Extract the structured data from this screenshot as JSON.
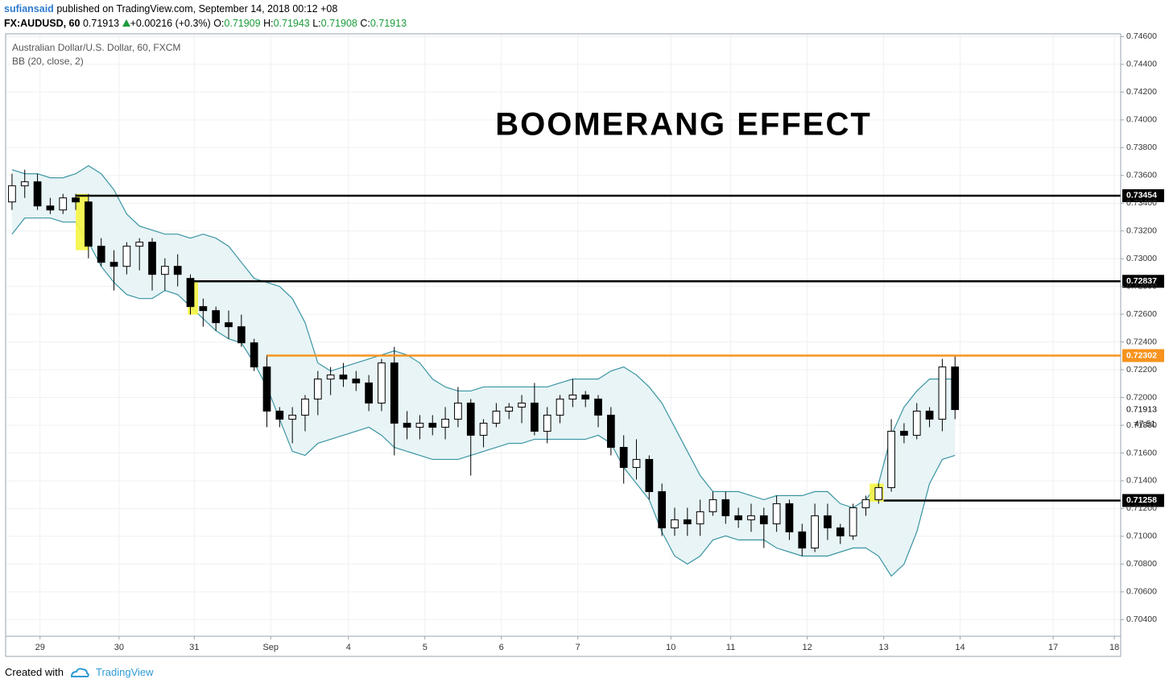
{
  "header": {
    "author": "sufiansaid",
    "published": "published on TradingView.com, September 14, 2018 00:12 +08"
  },
  "quote": {
    "symbol": "FX:AUDUSD, 60",
    "last": 0.71913,
    "change": "+0.00216 (+0.3%)",
    "ohlc": [
      {
        "label": "O:",
        "value": 0.71909
      },
      {
        "label": "H:",
        "value": 0.71943
      },
      {
        "label": "L:",
        "value": 0.71908
      },
      {
        "label": "C:",
        "value": 0.71913
      }
    ]
  },
  "footer": {
    "created": "Created with",
    "brand": "TradingView"
  },
  "chart_data": {
    "type": "candlestick",
    "title": "BOOMERANG EFFECT",
    "legend": [
      "Australian Dollar/U.S. Dollar, 60, FXCM",
      "BB (20, close, 2)"
    ],
    "up_color": "#ffffff",
    "down_color": "#000000",
    "grid": true,
    "open": [
      0.73409,
      0.73525,
      0.73554,
      0.7338,
      0.73351,
      0.73438,
      0.73409,
      0.7309,
      0.72974,
      0.72945,
      0.7309,
      0.73119,
      0.72887,
      0.72945,
      0.72858,
      0.72655,
      0.72626,
      0.72539,
      0.7251,
      0.72394,
      0.7222,
      0.71902,
      0.71844,
      0.71873,
      0.71989,
      0.72133,
      0.72162,
      0.72133,
      0.72105,
      0.7196,
      0.72249,
      0.71815,
      0.71786,
      0.71815,
      0.71786,
      0.71844,
      0.7196,
      0.71728,
      0.71815,
      0.71902,
      0.71931,
      0.7196,
      0.71757,
      0.71873,
      0.71989,
      0.72018,
      0.71989,
      0.71873,
      0.71641,
      0.71496,
      0.71554,
      0.71322,
      0.71061,
      0.71119,
      0.7109,
      0.71177,
      0.71264,
      0.71148,
      0.71119,
      0.71148,
      0.7109,
      0.71235,
      0.71032,
      0.70916,
      0.71148,
      0.71061,
      0.71003,
      0.71206,
      0.71264,
      0.71351,
      0.71757,
      0.71728,
      0.71902,
      0.71844,
      0.7222
    ],
    "high": [
      0.73612,
      0.73641,
      0.73612,
      0.73438,
      0.73467,
      0.73467,
      0.73467,
      0.73148,
      0.73061,
      0.73119,
      0.73148,
      0.73148,
      0.73003,
      0.73032,
      0.72887,
      0.72713,
      0.72655,
      0.72626,
      0.72597,
      0.72423,
      0.72307,
      0.71931,
      0.71931,
      0.72018,
      0.72191,
      0.7222,
      0.72249,
      0.72191,
      0.72162,
      0.72278,
      0.72365,
      0.71902,
      0.71873,
      0.71873,
      0.71931,
      0.72076,
      0.71989,
      0.71844,
      0.7196,
      0.7196,
      0.72018,
      0.72105,
      0.71931,
      0.72018,
      0.72133,
      0.72047,
      0.72018,
      0.71931,
      0.71728,
      0.71699,
      0.71583,
      0.7138,
      0.71206,
      0.71206,
      0.71264,
      0.71322,
      0.71322,
      0.71206,
      0.71235,
      0.71206,
      0.71293,
      0.71264,
      0.7109,
      0.71235,
      0.71235,
      0.7109,
      0.71235,
      0.71293,
      0.7138,
      0.71844,
      0.71815,
      0.7196,
      0.71931,
      0.72278,
      0.72302
    ],
    "low": [
      0.73351,
      0.73438,
      0.73351,
      0.73322,
      0.73322,
      0.73351,
      0.73003,
      0.72945,
      0.72771,
      0.72887,
      0.72916,
      0.72771,
      0.72771,
      0.728,
      0.72597,
      0.7251,
      0.72481,
      0.72423,
      0.72365,
      0.72191,
      0.71786,
      0.71786,
      0.7167,
      0.71757,
      0.71873,
      0.72018,
      0.72076,
      0.72047,
      0.71902,
      0.71902,
      0.71583,
      0.71699,
      0.71699,
      0.71728,
      0.71699,
      0.71786,
      0.71438,
      0.71641,
      0.71786,
      0.71844,
      0.71815,
      0.71728,
      0.7167,
      0.71815,
      0.71931,
      0.71931,
      0.71786,
      0.71583,
      0.7138,
      0.71409,
      0.71264,
      0.71003,
      0.71003,
      0.71003,
      0.71003,
      0.71148,
      0.7109,
      0.71061,
      0.71032,
      0.70916,
      0.71032,
      0.70974,
      0.70858,
      0.70887,
      0.70974,
      0.70945,
      0.70974,
      0.71148,
      0.71235,
      0.71322,
      0.7167,
      0.71699,
      0.71786,
      0.71757,
      0.71844
    ],
    "close": [
      0.73525,
      0.73554,
      0.7338,
      0.73351,
      0.73438,
      0.73409,
      0.7309,
      0.72974,
      0.72945,
      0.7309,
      0.73119,
      0.72887,
      0.72945,
      0.72887,
      0.72655,
      0.72626,
      0.72539,
      0.7251,
      0.72394,
      0.7222,
      0.71902,
      0.71844,
      0.71873,
      0.71989,
      0.72133,
      0.72162,
      0.72133,
      0.72105,
      0.7196,
      0.72249,
      0.71815,
      0.71786,
      0.71815,
      0.71786,
      0.71844,
      0.7196,
      0.71728,
      0.71815,
      0.71902,
      0.71931,
      0.7196,
      0.71757,
      0.71873,
      0.71989,
      0.72018,
      0.71989,
      0.71873,
      0.71641,
      0.71496,
      0.71554,
      0.71322,
      0.71061,
      0.71119,
      0.7109,
      0.71177,
      0.71264,
      0.71148,
      0.71119,
      0.71148,
      0.7109,
      0.71235,
      0.71032,
      0.70916,
      0.71148,
      0.71061,
      0.71003,
      0.71206,
      0.71264,
      0.71351,
      0.71757,
      0.71728,
      0.71902,
      0.71844,
      0.7222,
      0.71913
    ],
    "bands": {
      "color": "#3b95a3",
      "fill": "#e8f4f6",
      "upper": [
        0.73641,
        0.73612,
        0.73612,
        0.73583,
        0.73583,
        0.73612,
        0.7367,
        0.73612,
        0.73496,
        0.73322,
        0.73235,
        0.73206,
        0.73177,
        0.73177,
        0.73148,
        0.73177,
        0.73148,
        0.7309,
        0.72974,
        0.72858,
        0.72829,
        0.728,
        0.72713,
        0.72539,
        0.72249,
        0.72191,
        0.7222,
        0.72249,
        0.72278,
        0.72307,
        0.72336,
        0.72307,
        0.72249,
        0.72133,
        0.72076,
        0.72047,
        0.72047,
        0.72076,
        0.72076,
        0.72076,
        0.72076,
        0.72076,
        0.72076,
        0.72105,
        0.72133,
        0.72133,
        0.72133,
        0.72191,
        0.7222,
        0.72162,
        0.72076,
        0.7196,
        0.71786,
        0.71612,
        0.71438,
        0.71322,
        0.71322,
        0.71322,
        0.71293,
        0.71264,
        0.71293,
        0.71293,
        0.71293,
        0.71322,
        0.71322,
        0.71235,
        0.71206,
        0.71264,
        0.7138,
        0.71728,
        0.71931,
        0.72047,
        0.72133,
        0.72133,
        0.72133
      ],
      "lower": [
        0.73177,
        0.73293,
        0.73293,
        0.73293,
        0.73264,
        0.73264,
        0.73119,
        0.72945,
        0.72829,
        0.72742,
        0.72713,
        0.72713,
        0.72771,
        0.72742,
        0.72655,
        0.72568,
        0.72481,
        0.72423,
        0.72394,
        0.72249,
        0.72076,
        0.71844,
        0.71612,
        0.71583,
        0.7167,
        0.71699,
        0.71728,
        0.71757,
        0.71786,
        0.71728,
        0.71641,
        0.71612,
        0.71583,
        0.71554,
        0.71554,
        0.71554,
        0.71583,
        0.71612,
        0.71641,
        0.7167,
        0.7167,
        0.71699,
        0.71699,
        0.71699,
        0.71699,
        0.71699,
        0.71728,
        0.7167,
        0.71496,
        0.7138,
        0.71264,
        0.71032,
        0.70858,
        0.708,
        0.70858,
        0.70974,
        0.71003,
        0.70974,
        0.70974,
        0.70974,
        0.70916,
        0.70887,
        0.70858,
        0.70858,
        0.70858,
        0.70887,
        0.70916,
        0.70916,
        0.70858,
        0.70713,
        0.708,
        0.71032,
        0.7138,
        0.71554,
        0.71583
      ]
    },
    "levels": [
      {
        "value": 0.73454,
        "start": 5.5,
        "color": "#000000"
      },
      {
        "value": 0.72837,
        "start": 14.7,
        "color": "#000000"
      },
      {
        "value": 0.72302,
        "start": 20.5,
        "color": "#f7931e"
      },
      {
        "value": 0.71258,
        "start": 68.9,
        "color": "#000000"
      }
    ],
    "highlights": [
      {
        "x": [
          5.5,
          6.5
        ],
        "y": [
          0.73061,
          0.73467
        ]
      },
      {
        "x": [
          14.3,
          15.1
        ],
        "y": [
          0.72597,
          0.7284
        ]
      },
      {
        "x": [
          67.8,
          68.9
        ],
        "y": [
          0.7125,
          0.7138
        ]
      }
    ],
    "highlight_color": "#f5f542",
    "countdown": "47:51",
    "xlim": [
      0,
      87.5
    ],
    "xticks": [
      {
        "value": 2.7,
        "label": "29"
      },
      {
        "value": 8.9,
        "label": "30"
      },
      {
        "value": 14.8,
        "label": "31"
      },
      {
        "value": 20.8,
        "label": "Sep"
      },
      {
        "value": 26.9,
        "label": "4"
      },
      {
        "value": 32.9,
        "label": "5"
      },
      {
        "value": 38.9,
        "label": "6"
      },
      {
        "value": 44.9,
        "label": "7"
      },
      {
        "value": 52.2,
        "label": "10"
      },
      {
        "value": 56.9,
        "label": "11"
      },
      {
        "value": 62.9,
        "label": "12"
      },
      {
        "value": 68.9,
        "label": "13"
      },
      {
        "value": 74.9,
        "label": "14"
      },
      {
        "value": 82.2,
        "label": "17"
      },
      {
        "value": 87.0,
        "label": "18"
      }
    ],
    "ylim": [
      0.7028,
      0.7462
    ],
    "yticks": [
      {
        "value": 0.704,
        "label": "0.70400"
      },
      {
        "value": 0.706,
        "label": "0.70600"
      },
      {
        "value": 0.708,
        "label": "0.70800"
      },
      {
        "value": 0.71,
        "label": "0.71000"
      },
      {
        "value": 0.712,
        "label": "0.71200"
      },
      {
        "value": 0.714,
        "label": "0.71400"
      },
      {
        "value": 0.716,
        "label": "0.71600"
      },
      {
        "value": 0.718,
        "label": "0.71800"
      },
      {
        "value": 0.72,
        "label": "0.72000"
      },
      {
        "value": 0.722,
        "label": "0.72200"
      },
      {
        "value": 0.724,
        "label": "0.72400"
      },
      {
        "value": 0.726,
        "label": "0.72600"
      },
      {
        "value": 0.728,
        "label": "0.72800"
      },
      {
        "value": 0.73,
        "label": "0.73000"
      },
      {
        "value": 0.732,
        "label": "0.73200"
      },
      {
        "value": 0.734,
        "label": "0.73400"
      },
      {
        "value": 0.736,
        "label": "0.73600"
      },
      {
        "value": 0.738,
        "label": "0.73800"
      },
      {
        "value": 0.74,
        "label": "0.74000"
      },
      {
        "value": 0.742,
        "label": "0.74200"
      },
      {
        "value": 0.744,
        "label": "0.74400"
      },
      {
        "value": 0.746,
        "label": "0.74600"
      }
    ]
  }
}
